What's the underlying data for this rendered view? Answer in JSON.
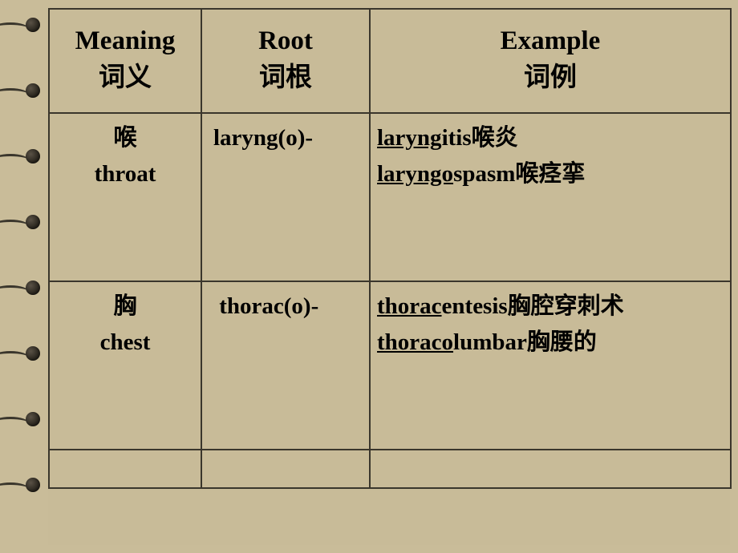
{
  "table": {
    "background_color": "#c8bb98",
    "border_color": "#3a362c",
    "header": {
      "meaning_en": "Meaning",
      "meaning_cn": "词义",
      "root_en": "Root",
      "root_cn": "词根",
      "example_en": "Example",
      "example_cn": "词例",
      "fontsize": 33,
      "fontweight": "bold"
    },
    "rows": [
      {
        "meaning_cn": "喉",
        "meaning_en": "throat",
        "root": "laryng(o)-",
        "examples": [
          {
            "underlined": "laryng",
            "rest": "itis",
            "cn": "喉炎"
          },
          {
            "underlined": "laryngo",
            "rest": "spasm",
            "cn": "喉痉挛"
          }
        ]
      },
      {
        "meaning_cn": "胸",
        "meaning_en": "chest",
        "root": "thorac(o)-",
        "examples": [
          {
            "underlined": " thorac",
            "rest": "entesis",
            "cn": "胸腔穿刺术"
          },
          {
            "underlined": "thoraco",
            "rest": "lumbar",
            "cn": "胸腰的"
          }
        ]
      }
    ],
    "cell_fontsize": 29
  }
}
